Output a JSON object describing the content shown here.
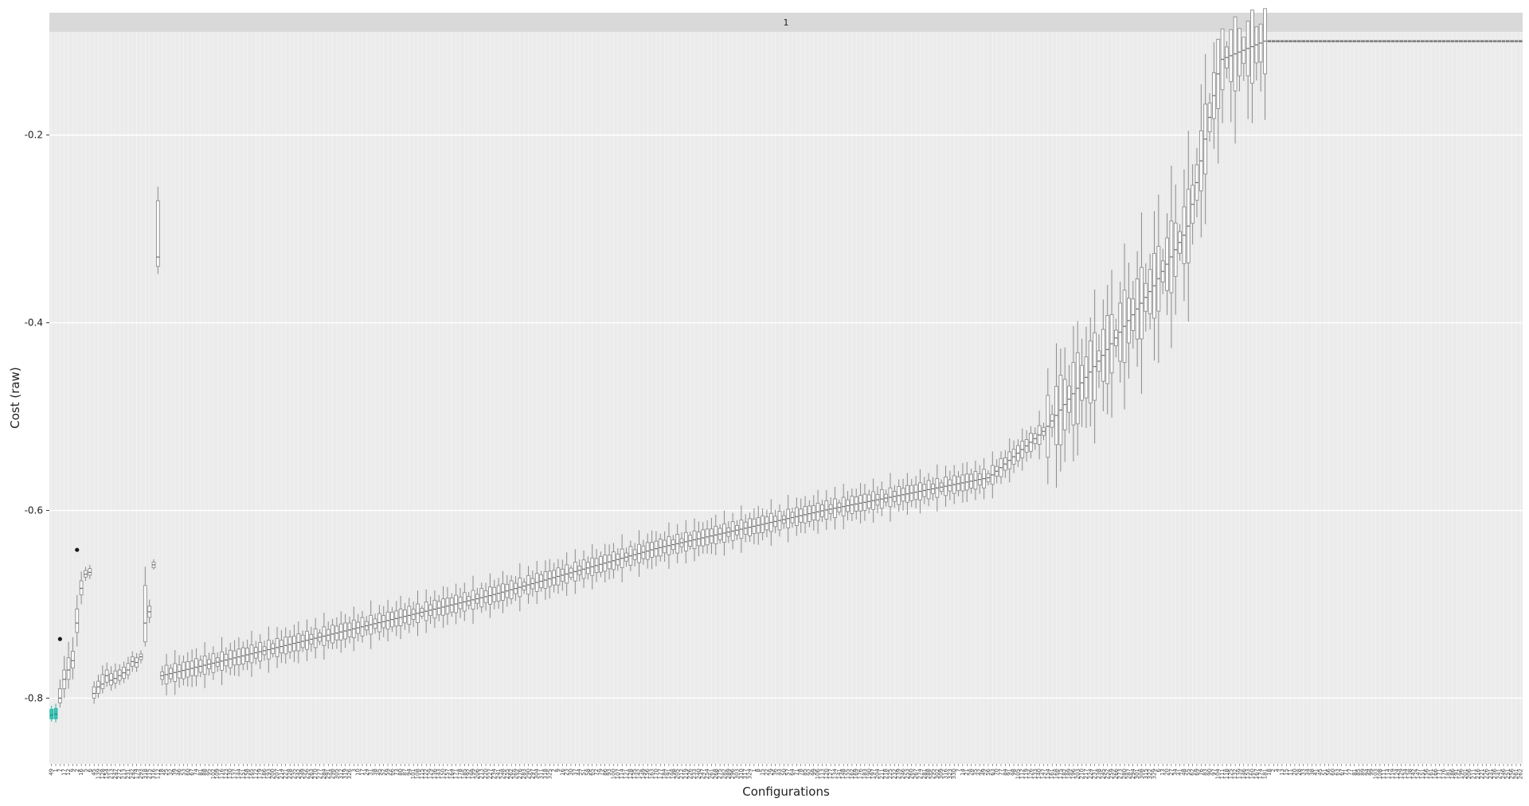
{
  "chart_data": {
    "type": "boxplot",
    "facet_label": "1",
    "xlabel": "Configurations",
    "ylabel": "Cost (raw)",
    "ylim": [
      -0.87,
      -0.09
    ],
    "yticks": [
      -0.8,
      -0.6,
      -0.4,
      -0.2
    ],
    "ytick_labels": [
      "-0.8",
      "-0.6",
      "-0.4",
      "-0.2"
    ],
    "grid": true,
    "elite_color": "#1fb8a8",
    "box_color": "#8c8c8c",
    "outlier_color": "#1a1a1a",
    "configurations": [
      {
        "x": "49",
        "elite": true,
        "min": -0.825,
        "q1": -0.822,
        "med": -0.818,
        "q3": -0.812,
        "max": -0.808
      },
      {
        "x": "1",
        "elite": true,
        "min": -0.826,
        "q1": -0.822,
        "med": -0.817,
        "q3": -0.811,
        "max": -0.806
      },
      {
        "x": "7",
        "min": -0.81,
        "q1": -0.805,
        "med": -0.8,
        "q3": -0.79,
        "max": -0.78,
        "outliers": [
          -0.737
        ]
      },
      {
        "x": "17",
        "min": -0.8,
        "q1": -0.79,
        "med": -0.78,
        "q3": -0.77,
        "max": -0.755
      },
      {
        "x": "12",
        "min": -0.79,
        "q1": -0.78,
        "med": -0.77,
        "q3": -0.757,
        "max": -0.74
      },
      {
        "x": "9",
        "min": -0.78,
        "q1": -0.768,
        "med": -0.76,
        "q3": -0.75,
        "max": -0.735
      },
      {
        "x": "2",
        "min": -0.745,
        "q1": -0.73,
        "med": -0.72,
        "q3": -0.705,
        "max": -0.69,
        "outliers": [
          -0.642
        ]
      },
      {
        "x": "16",
        "min": -0.7,
        "q1": -0.69,
        "med": -0.683,
        "q3": -0.675,
        "max": -0.665
      },
      {
        "x": "5",
        "min": -0.675,
        "q1": -0.671,
        "med": -0.668,
        "q3": -0.664,
        "max": -0.66
      },
      {
        "x": "6",
        "min": -0.673,
        "q1": -0.669,
        "med": -0.666,
        "q3": -0.662,
        "max": -0.658
      },
      {
        "x": "45",
        "min": -0.806,
        "q1": -0.8,
        "med": -0.795,
        "q3": -0.788,
        "max": -0.782
      },
      {
        "x": "139",
        "min": -0.8,
        "q1": -0.795,
        "med": -0.788,
        "q3": -0.782,
        "max": -0.775
      },
      {
        "x": "128",
        "min": -0.795,
        "q1": -0.79,
        "med": -0.785,
        "q3": -0.775,
        "max": -0.765
      },
      {
        "x": "154",
        "min": -0.788,
        "q1": -0.783,
        "med": -0.776,
        "q3": -0.77,
        "max": -0.762
      },
      {
        "x": "213",
        "min": -0.792,
        "q1": -0.786,
        "med": -0.781,
        "q3": -0.774,
        "max": -0.766
      },
      {
        "x": "247",
        "min": -0.79,
        "q1": -0.784,
        "med": -0.779,
        "q3": -0.771,
        "max": -0.763
      },
      {
        "x": "272",
        "min": -0.786,
        "q1": -0.781,
        "med": -0.776,
        "q3": -0.77,
        "max": -0.764
      },
      {
        "x": "213",
        "min": -0.784,
        "q1": -0.779,
        "med": -0.773,
        "q3": -0.767,
        "max": -0.761
      },
      {
        "x": "231",
        "min": -0.78,
        "q1": -0.775,
        "med": -0.77,
        "q3": -0.763,
        "max": -0.756
      },
      {
        "x": "242",
        "min": -0.772,
        "q1": -0.766,
        "med": -0.761,
        "q3": -0.756,
        "max": -0.75
      },
      {
        "x": "174",
        "min": -0.772,
        "q1": -0.767,
        "med": -0.762,
        "q3": -0.757,
        "max": -0.752
      },
      {
        "x": "293",
        "min": -0.763,
        "q1": -0.759,
        "med": -0.756,
        "q3": -0.753,
        "max": -0.749
      },
      {
        "x": "318",
        "min": -0.745,
        "q1": -0.74,
        "med": -0.72,
        "q3": -0.68,
        "max": -0.66
      },
      {
        "x": "215",
        "min": -0.72,
        "q1": -0.714,
        "med": -0.708,
        "q3": -0.702,
        "max": -0.695
      },
      {
        "x": "316",
        "min": -0.663,
        "q1": -0.661,
        "med": -0.658,
        "q3": -0.655,
        "max": -0.652
      },
      {
        "x": "112",
        "min": -0.348,
        "q1": -0.34,
        "med": -0.33,
        "q3": -0.27,
        "max": -0.255
      }
    ],
    "trend": {
      "count": 260,
      "label_base": 17,
      "label_step": 7,
      "label_mod": 330,
      "curve_x": [
        0,
        0.3,
        0.45,
        0.6,
        0.75,
        0.8,
        0.85,
        0.9,
        0.93,
        0.96,
        1
      ],
      "curve_y": [
        -0.776,
        -0.69,
        -0.64,
        -0.6,
        -0.565,
        -0.515,
        -0.44,
        -0.36,
        -0.3,
        -0.12,
        -0.1
      ]
    },
    "flat": {
      "count": 60,
      "value": -0.1,
      "labels": [
        "18",
        "2",
        "4",
        "13",
        "15",
        "11",
        "20",
        "28",
        "33",
        "34",
        "38",
        "41",
        "45",
        "51",
        "56",
        "60",
        "63",
        "67",
        "71",
        "77",
        "81",
        "85",
        "89",
        "94",
        "99",
        "103",
        "108",
        "111",
        "114",
        "119",
        "124",
        "129",
        "134",
        "138",
        "142",
        "147",
        "151",
        "156",
        "161",
        "166",
        "171",
        "176",
        "181",
        "186",
        "191",
        "196",
        "201",
        "206",
        "211",
        "216",
        "221",
        "226",
        "231",
        "236",
        "241",
        "246",
        "251",
        "256",
        "261",
        "262"
      ]
    }
  }
}
